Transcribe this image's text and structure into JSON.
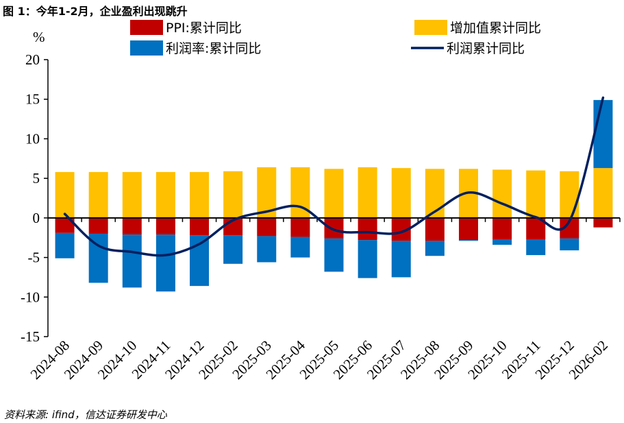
{
  "title": "图 1：今年1-2月，企业盈利出现跳升",
  "source": "资料来源: ifind，信达证券研发中心",
  "chart_data": {
    "type": "bar",
    "ylabel": "%",
    "ylim": [
      -15,
      20
    ],
    "yticks": [
      20,
      15,
      10,
      5,
      0,
      -5,
      -10,
      -15
    ],
    "categories": [
      "2024-08",
      "2024-09",
      "2024-10",
      "2024-11",
      "2024-12",
      "2025-02",
      "2025-03",
      "2025-04",
      "2025-05",
      "2025-06",
      "2025-07",
      "2025-08",
      "2025-09",
      "2025-10",
      "2025-11",
      "2025-12",
      "2026-02"
    ],
    "series": [
      {
        "name": "PPI:累计同比",
        "kind": "bar",
        "color": "#C00000",
        "values": [
          -1.9,
          -2.0,
          -2.1,
          -2.1,
          -2.2,
          -2.2,
          -2.3,
          -2.4,
          -2.6,
          -2.8,
          -2.9,
          -2.9,
          -2.8,
          -2.7,
          -2.7,
          -2.6,
          -1.2
        ]
      },
      {
        "name": "增加值累计同比",
        "kind": "bar",
        "color": "#FFC000",
        "values": [
          5.8,
          5.8,
          5.8,
          5.8,
          5.8,
          5.9,
          6.4,
          6.4,
          6.2,
          6.4,
          6.3,
          6.2,
          6.2,
          6.1,
          6.0,
          5.9,
          6.3
        ]
      },
      {
        "name": "利润率:累计同比",
        "kind": "bar",
        "color": "#0070C0",
        "values": [
          -3.2,
          -6.2,
          -6.7,
          -7.2,
          -6.4,
          -3.6,
          -3.3,
          -2.6,
          -4.2,
          -4.8,
          -4.6,
          -1.9,
          -0.1,
          -0.7,
          -2.0,
          -1.5,
          8.6
        ]
      },
      {
        "name": "利润累计同比",
        "kind": "line",
        "color": "#002060",
        "values": [
          0.5,
          -3.5,
          -4.3,
          -4.7,
          -3.3,
          -0.3,
          0.8,
          1.4,
          -1.5,
          -1.8,
          -1.8,
          0.8,
          3.2,
          1.8,
          0.1,
          -0.4,
          15.2
        ]
      }
    ],
    "legend": "top",
    "grid": false
  }
}
